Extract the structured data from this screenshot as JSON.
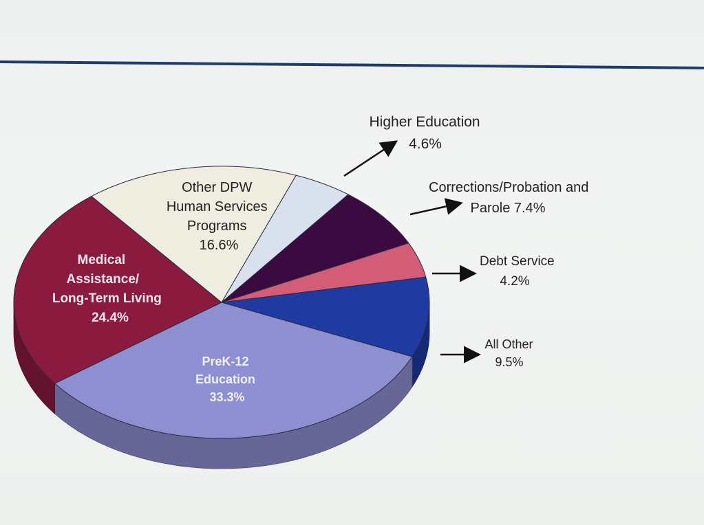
{
  "chart_data": {
    "type": "pie",
    "title": "",
    "slices": [
      {
        "label": "Higher Education",
        "value": 4.6,
        "value_label": "4.6%",
        "color": "#d9e1ee"
      },
      {
        "label": "Corrections/Probation and Parole",
        "value": 7.4,
        "value_label": "7.4%",
        "color": "#3a0a40"
      },
      {
        "label": "Debt Service",
        "value": 4.2,
        "value_label": "4.2%",
        "color": "#d35c77"
      },
      {
        "label": "All Other",
        "value": 9.5,
        "value_label": "9.5%",
        "color": "#1f3aa0"
      },
      {
        "label": "PreK-12 Education",
        "value": 33.3,
        "value_label": "33.3%",
        "color": "#8e8fd0"
      },
      {
        "label": "Medical Assistance/ Long-Term Living",
        "value": 24.4,
        "value_label": "24.4%",
        "color": "#8a1a3e"
      },
      {
        "label": "Other DPW Human Services Programs",
        "value": 16.6,
        "value_label": "16.6%",
        "color": "#efece0"
      }
    ],
    "labels": {
      "higher_ed": [
        "Higher Education",
        "4.6%"
      ],
      "corrections": [
        "Corrections/Probation and",
        "Parole 7.4%"
      ],
      "debt": [
        "Debt Service",
        "4.2%"
      ],
      "all_other": [
        "All Other",
        "9.5%"
      ],
      "prek": [
        "PreK-12",
        "Education",
        "33.3%"
      ],
      "medical": [
        "Medical",
        "Assistance/",
        "Long-Term Living",
        "24.4%"
      ],
      "other_dpw": [
        "Other DPW",
        "Human Services",
        "Programs",
        "16.6%"
      ]
    }
  }
}
